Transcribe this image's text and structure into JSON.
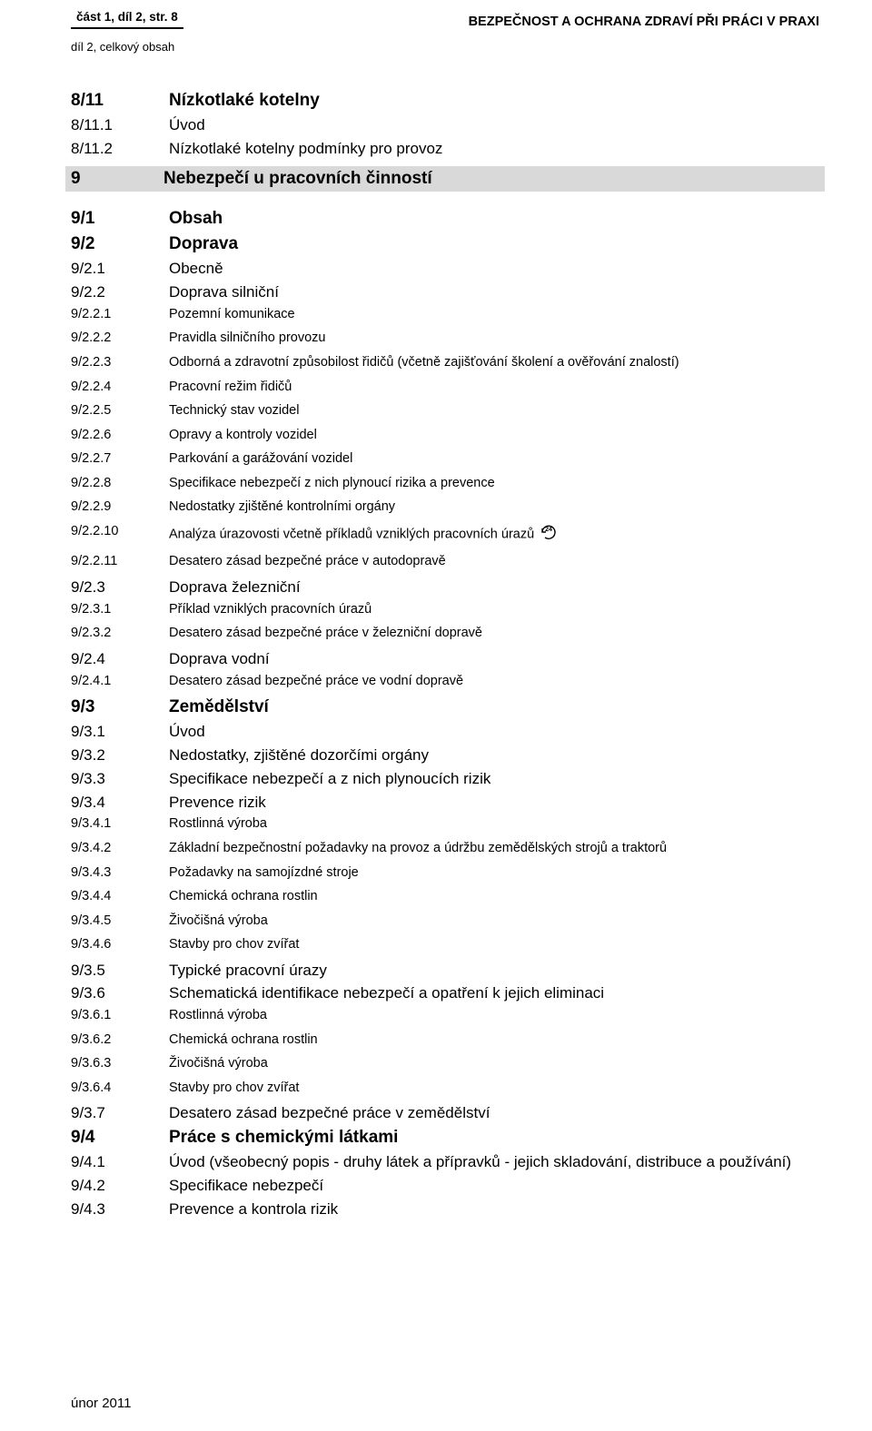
{
  "header": {
    "left": "část 1, díl 2, str. 8",
    "right": "BEZPEČNOST A OCHRANA ZDRAVÍ PŘI PRÁCI V PRAXI",
    "sub": "díl 2, celkový obsah"
  },
  "section_bar": {
    "num": "9",
    "txt": "Nebezpečí u pracovních činností"
  },
  "rows": [
    {
      "num": "8/11",
      "txt": "Nízkotlaké kotelny",
      "bold": true,
      "size": "large"
    },
    {
      "num": "8/11.1",
      "txt": "Úvod",
      "bold": false,
      "size": "med"
    },
    {
      "num": "8/11.2",
      "txt": "Nízkotlaké kotelny podmínky pro provoz",
      "bold": false,
      "size": "med"
    },
    {
      "type": "section"
    },
    {
      "num": "9/1",
      "txt": "Obsah",
      "bold": true,
      "size": "large"
    },
    {
      "num": "9/2",
      "txt": "Doprava",
      "bold": true,
      "size": "large"
    },
    {
      "num": "9/2.1",
      "txt": "Obecně",
      "bold": false,
      "size": "med"
    },
    {
      "num": "9/2.2",
      "txt": "Doprava silniční",
      "bold": false,
      "size": "med"
    },
    {
      "num": "9/2.2.1",
      "txt": "Pozemní komunikace",
      "bold": false,
      "size": "small"
    },
    {
      "num": "9/2.2.2",
      "txt": "Pravidla silničního provozu",
      "bold": false,
      "size": "small"
    },
    {
      "num": "9/2.2.3",
      "txt": "Odborná a zdravotní způsobilost řidičů (včetně zajišťování školení a ověřování znalostí)",
      "bold": false,
      "size": "small"
    },
    {
      "num": "9/2.2.4",
      "txt": "Pracovní režim řidičů",
      "bold": false,
      "size": "small"
    },
    {
      "num": "9/2.2.5",
      "txt": "Technický stav vozidel",
      "bold": false,
      "size": "small"
    },
    {
      "num": "9/2.2.6",
      "txt": "Opravy a kontroly vozidel",
      "bold": false,
      "size": "small"
    },
    {
      "num": "9/2.2.7",
      "txt": "Parkování a garážování vozidel",
      "bold": false,
      "size": "small"
    },
    {
      "num": "9/2.2.8",
      "txt": "Specifikace nebezpečí z nich plynoucí rizika a prevence",
      "bold": false,
      "size": "small"
    },
    {
      "num": "9/2.2.9",
      "txt": "Nedostatky zjištěné kontrolními orgány",
      "bold": false,
      "size": "small"
    },
    {
      "num": "9/2.2.10",
      "txt": "Analýza úrazovosti včetně příkladů vzniklých pracovních úrazů",
      "bold": false,
      "size": "small",
      "icon": true
    },
    {
      "num": "9/2.2.11",
      "txt": "Desatero zásad bezpečné práce v autodopravě",
      "bold": false,
      "size": "small"
    },
    {
      "num": "9/2.3",
      "txt": "Doprava železniční",
      "bold": false,
      "size": "med"
    },
    {
      "num": "9/2.3.1",
      "txt": "Příklad vzniklých pracovních úrazů",
      "bold": false,
      "size": "small"
    },
    {
      "num": "9/2.3.2",
      "txt": "Desatero zásad bezpečné práce v železniční dopravě",
      "bold": false,
      "size": "small"
    },
    {
      "num": "9/2.4",
      "txt": "Doprava vodní",
      "bold": false,
      "size": "med"
    },
    {
      "num": "9/2.4.1",
      "txt": "Desatero zásad bezpečné práce ve vodní dopravě",
      "bold": false,
      "size": "small"
    },
    {
      "num": "9/3",
      "txt": "Zemědělství",
      "bold": true,
      "size": "large"
    },
    {
      "num": "9/3.1",
      "txt": "Úvod",
      "bold": false,
      "size": "med"
    },
    {
      "num": "9/3.2",
      "txt": "Nedostatky, zjištěné dozorčími orgány",
      "bold": false,
      "size": "med"
    },
    {
      "num": "9/3.3",
      "txt": "Specifikace nebezpečí a z nich plynoucích rizik",
      "bold": false,
      "size": "med"
    },
    {
      "num": "9/3.4",
      "txt": "Prevence rizik",
      "bold": false,
      "size": "med"
    },
    {
      "num": "9/3.4.1",
      "txt": "Rostlinná výroba",
      "bold": false,
      "size": "small"
    },
    {
      "num": "9/3.4.2",
      "txt": "Základní bezpečnostní požadavky na provoz a údržbu zemědělských strojů a traktorů",
      "bold": false,
      "size": "small"
    },
    {
      "num": "9/3.4.3",
      "txt": "Požadavky na samojízdné stroje",
      "bold": false,
      "size": "small"
    },
    {
      "num": "9/3.4.4",
      "txt": "Chemická ochrana rostlin",
      "bold": false,
      "size": "small"
    },
    {
      "num": "9/3.4.5",
      "txt": "Živočišná výroba",
      "bold": false,
      "size": "small"
    },
    {
      "num": "9/3.4.6",
      "txt": "Stavby pro chov zvířat",
      "bold": false,
      "size": "small"
    },
    {
      "num": "9/3.5",
      "txt": "Typické pracovní úrazy",
      "bold": false,
      "size": "med"
    },
    {
      "num": "9/3.6",
      "txt": "Schematická identifikace nebezpečí a opatření k jejich eliminaci",
      "bold": false,
      "size": "med"
    },
    {
      "num": "9/3.6.1",
      "txt": "Rostlinná výroba",
      "bold": false,
      "size": "small"
    },
    {
      "num": "9/3.6.2",
      "txt": "Chemická ochrana rostlin",
      "bold": false,
      "size": "small"
    },
    {
      "num": "9/3.6.3",
      "txt": "Živočišná výroba",
      "bold": false,
      "size": "small"
    },
    {
      "num": "9/3.6.4",
      "txt": "Stavby pro chov zvířat",
      "bold": false,
      "size": "small"
    },
    {
      "num": "9/3.7",
      "txt": "Desatero zásad bezpečné práce v zemědělství",
      "bold": false,
      "size": "med"
    },
    {
      "num": "9/4",
      "txt": "Práce s chemickými látkami",
      "bold": true,
      "size": "large"
    },
    {
      "num": "9/4.1",
      "txt": "Úvod (všeobecný popis - druhy látek a přípravků - jejich skladování, distribuce a používání)",
      "bold": false,
      "size": "med"
    },
    {
      "num": "9/4.2",
      "txt": "Specifikace nebezpečí",
      "bold": false,
      "size": "med"
    },
    {
      "num": "9/4.3",
      "txt": "Prevence a kontrola rizik",
      "bold": false,
      "size": "med"
    }
  ],
  "icon": {
    "label": "24"
  },
  "footer": "únor 2011",
  "style": {
    "row_gap_small": 8,
    "row_gap_large": 4,
    "row_gap_med": 4
  }
}
